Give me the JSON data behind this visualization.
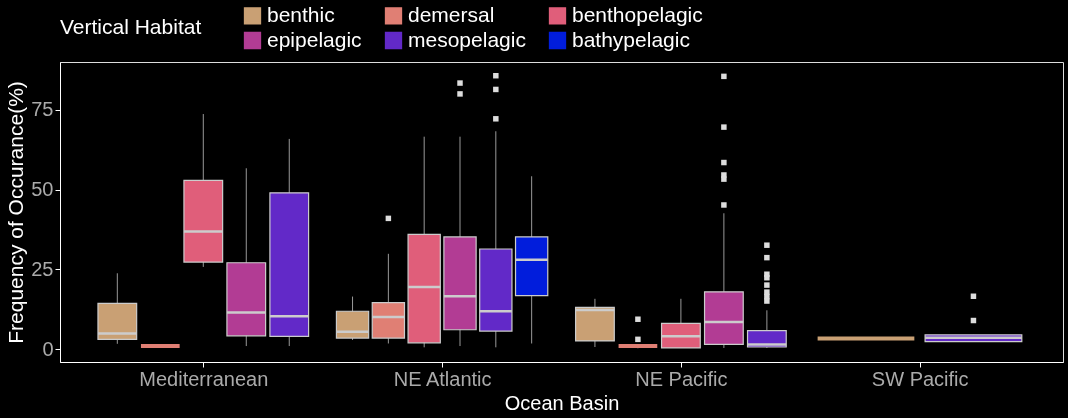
{
  "chart_data": {
    "type": "box",
    "xlabel": "Ocean Basin",
    "ylabel": "Frequency of Occurance(%)",
    "legend_title": "Vertical Habitat",
    "legend": "top",
    "grid": false,
    "categories": [
      "Mediterranean",
      "NE Atlantic",
      "NE Pacific",
      "SW Pacific"
    ],
    "ylim": [
      -4,
      90
    ],
    "yticks": [
      0,
      25,
      50,
      75
    ],
    "series": [
      {
        "name": "benthic",
        "color": "#c9a074",
        "boxes": [
          {
            "low": 1.7,
            "q1": 3.1,
            "median": 4.9,
            "q3": 14.4,
            "high": 23.8
          },
          {
            "low": 2.9,
            "q1": 3.5,
            "median": 5.5,
            "q3": 11.9,
            "high": 16.5
          },
          {
            "low": 0.7,
            "q1": 2.6,
            "median": 12.3,
            "q3": 13.1,
            "high": 15.8
          },
          {
            "low": 3.4,
            "q1": 3.4,
            "median": 3.4,
            "q3": 3.4,
            "high": 3.4
          }
        ]
      },
      {
        "name": "demersal",
        "color": "#e07f74",
        "boxes": [
          {
            "low": 1.0,
            "q1": 1.0,
            "median": 1.0,
            "q3": 1.0,
            "high": 1.0
          },
          {
            "low": 1.8,
            "q1": 3.5,
            "median": 10.1,
            "q3": 14.6,
            "high": 29.9,
            "outliers": [
              41.0
            ]
          },
          {
            "low": 0.3,
            "q1": 1.0,
            "median": 1.0,
            "q3": 1.0,
            "high": 1.0,
            "outliers": [
              3.1,
              9.4
            ]
          },
          null
        ]
      },
      {
        "name": "benthopelagic",
        "color": "#e05e7a",
        "boxes": [
          {
            "low": 25.8,
            "q1": 27.3,
            "median": 36.9,
            "q3": 52.9,
            "high": 73.7
          },
          {
            "low": 0.6,
            "q1": 2.0,
            "median": 19.5,
            "q3": 36.0,
            "high": 66.6
          },
          {
            "low": 0.4,
            "q1": 0.4,
            "median": 4.1,
            "q3": 8.1,
            "high": 15.8
          },
          null
        ]
      },
      {
        "name": "epipelagic",
        "color": "#b23c94",
        "boxes": [
          {
            "low": 1.0,
            "q1": 4.2,
            "median": 11.5,
            "q3": 27.1,
            "high": 56.7
          },
          {
            "low": 1.0,
            "q1": 6.1,
            "median": 16.6,
            "q3": 35.2,
            "high": 66.6,
            "outliers": [
              80.0,
              83.4
            ]
          },
          {
            "low": 0.4,
            "q1": 1.5,
            "median": 8.5,
            "q3": 18.0,
            "high": 42.6,
            "outliers": [
              45.2,
              53.3,
              54.6,
              58.5,
              69.6,
              85.5
            ]
          },
          null
        ]
      },
      {
        "name": "mesopelagic",
        "color": "#6229c8",
        "boxes": [
          {
            "low": 1.0,
            "q1": 4.0,
            "median": 10.3,
            "q3": 49.0,
            "high": 65.9
          },
          {
            "low": 0.6,
            "q1": 5.7,
            "median": 11.9,
            "q3": 31.4,
            "high": 68.3,
            "outliers": [
              72.2,
              81.4,
              85.7
            ]
          },
          {
            "low": 0.4,
            "q1": 0.7,
            "median": 1.5,
            "q3": 5.8,
            "high": 12.2,
            "outliers": [
              15.1,
              16.5,
              17.9,
              20.1,
              22.4,
              23.5,
              28.7,
              32.6
            ]
          },
          {
            "low": 2.4,
            "q1": 2.4,
            "median": 3.6,
            "q3": 4.5,
            "high": 4.5,
            "outliers": [
              9.0,
              16.6
            ]
          }
        ]
      },
      {
        "name": "bathypelagic",
        "color": "#011ddc",
        "boxes": [
          null,
          {
            "low": 1.8,
            "q1": 16.8,
            "median": 28.0,
            "q3": 35.2,
            "high": 54.2
          },
          null,
          null
        ]
      }
    ]
  }
}
